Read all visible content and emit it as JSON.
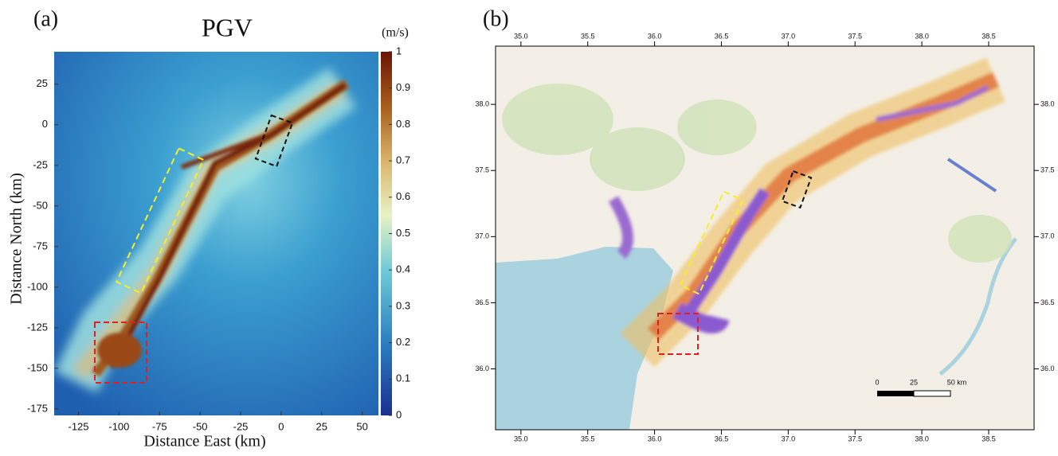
{
  "chart_data": [
    {
      "type": "heatmap",
      "panel_label": "(a)",
      "title": "PGV",
      "x_label": "Distance East (km)",
      "y_label": "Distance North (km)",
      "colorbar_label": "(m/s)",
      "xlim": [
        -140,
        60
      ],
      "xticks": [
        -125,
        -100,
        -75,
        -50,
        -25,
        0,
        25,
        50
      ],
      "ylim": [
        -179,
        45
      ],
      "yticks": [
        25,
        0,
        -25,
        -50,
        -75,
        -100,
        -125,
        -150,
        -175
      ],
      "clim": [
        0,
        1
      ],
      "cticks": [
        0,
        0.1,
        0.2,
        0.3,
        0.4,
        0.5,
        0.6,
        0.7,
        0.8,
        0.9,
        1
      ]
    },
    {
      "type": "map",
      "panel_label": "(b)",
      "xlim": [
        34.81,
        38.84
      ],
      "xticks": [
        {
          "value": 35,
          "label": "35.0"
        },
        {
          "value": 35.5,
          "label": "35.5"
        },
        {
          "value": 36,
          "label": "36.0"
        },
        {
          "value": 36.5,
          "label": "36.5"
        },
        {
          "value": 37,
          "label": "37.0"
        },
        {
          "value": 37.5,
          "label": "37.5"
        },
        {
          "value": 38,
          "label": "38.0"
        },
        {
          "value": 38.5,
          "label": "38.5"
        }
      ],
      "ylim": [
        35.54,
        38.44
      ],
      "yticks": [
        {
          "value": 36,
          "label": "36.0"
        },
        {
          "value": 36.5,
          "label": "36.5"
        },
        {
          "value": 37,
          "label": "37.0"
        },
        {
          "value": 37.5,
          "label": "37.5"
        },
        {
          "value": 38,
          "label": "38.0"
        }
      ],
      "scale_bar_labels": [
        "0",
        "25",
        "50 km"
      ]
    }
  ]
}
